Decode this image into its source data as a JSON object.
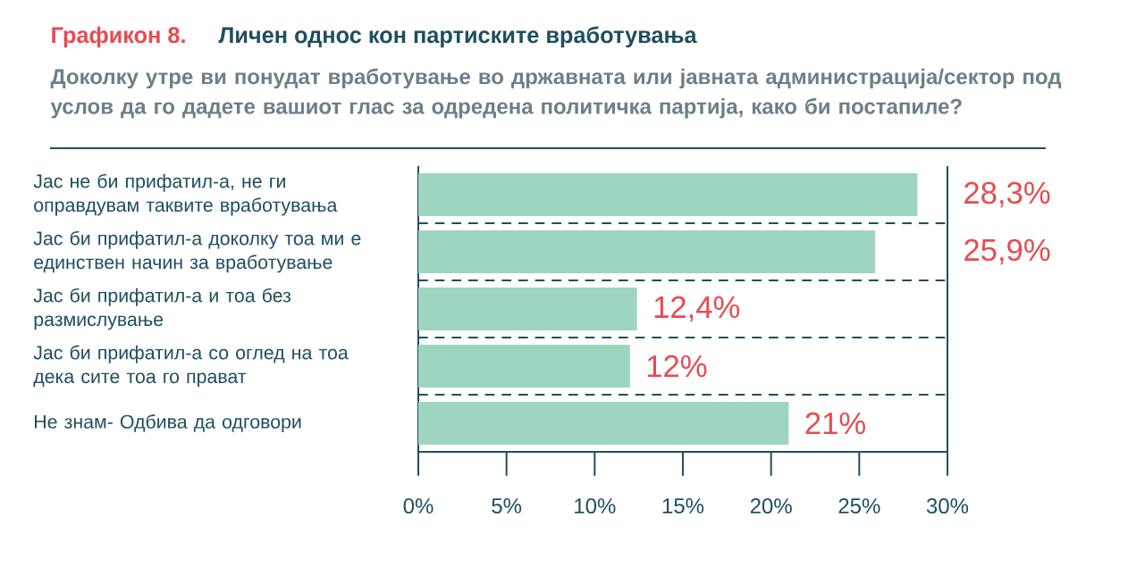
{
  "chart_data": {
    "type": "bar",
    "orientation": "horizontal",
    "title": "Личен однос кон партиските вработувања",
    "subtitle": "Доколку утре  ви понудат вработување во државната или јавната администрација/сектор под услов да го дадете вашиот глас за одредена политичка партија, како би постапиле?",
    "annotations": [
      "Графикон 8."
    ],
    "categories": [
      "Јас не би прифатил-а, не ги оправдувам таквите вработувања",
      "Јас би прифатил-а доколку тоа ми е единствен начин за вработување",
      "Јас би прифатил-а и тоа без размислување",
      "Јас би прифатил-а со оглед на тоа дека сите тоа го прават",
      "Не знам- Одбива да одговори"
    ],
    "values": [
      28.3,
      25.9,
      12.4,
      12,
      21
    ],
    "value_labels": [
      "28,3%",
      "25,9%",
      "12,4%",
      "12%",
      "21%"
    ],
    "color": "#9dd5c0",
    "xlim": [
      0,
      30
    ],
    "xticks": [
      {
        "value": 0,
        "label": "0%"
      },
      {
        "value": 5,
        "label": "5%"
      },
      {
        "value": 10,
        "label": "10%"
      },
      {
        "value": 15,
        "label": "15%"
      },
      {
        "value": 20,
        "label": "20%"
      },
      {
        "value": 25,
        "label": "25%"
      },
      {
        "value": 30,
        "label": "30%"
      }
    ],
    "grid": "y"
  }
}
